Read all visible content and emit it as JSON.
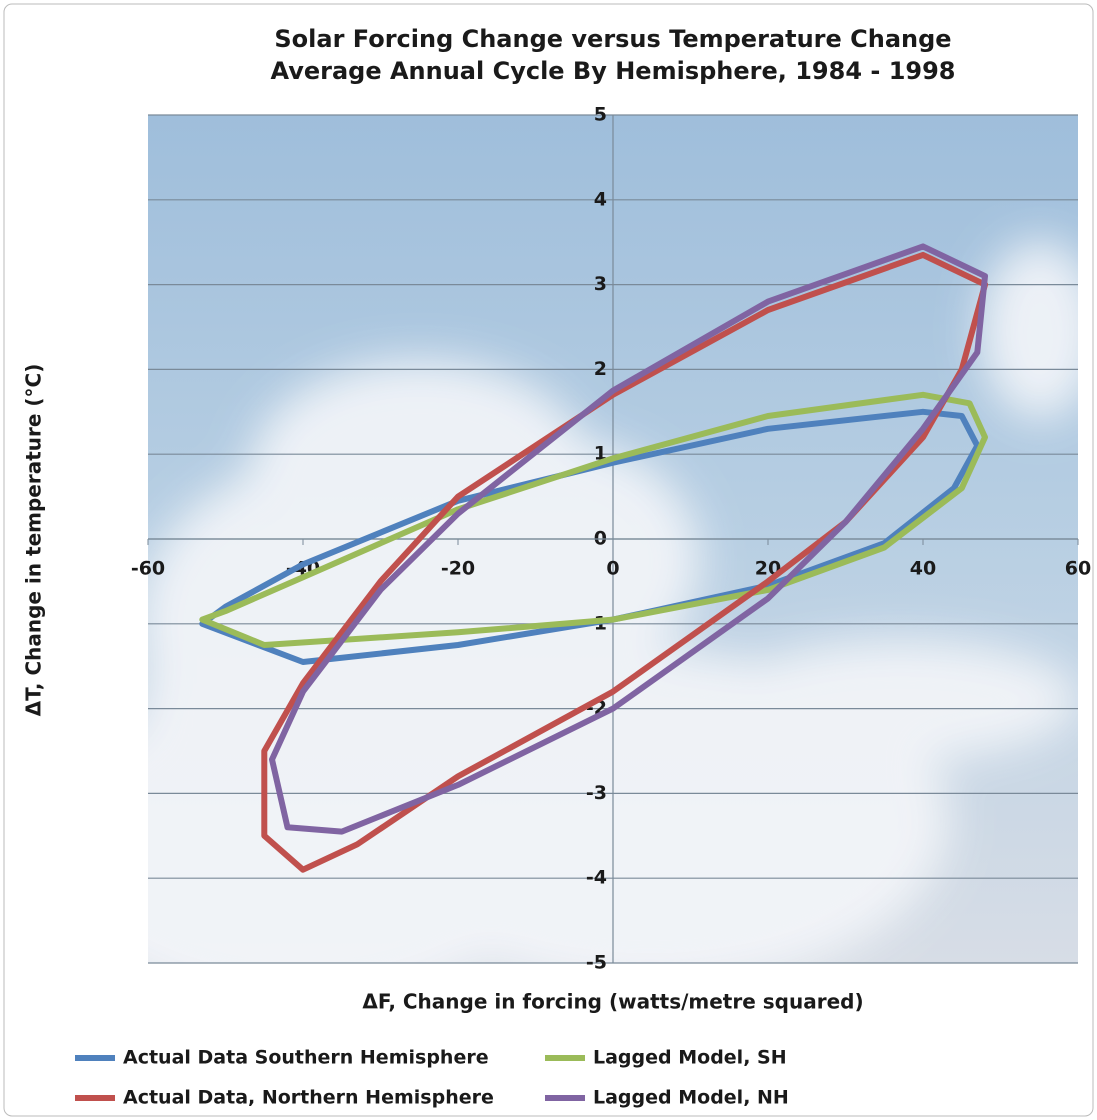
{
  "chart_data": {
    "type": "line",
    "title": "Solar Forcing Change versus Temperature Change",
    "subtitle": "Average Annual Cycle By Hemisphere, 1984 - 1998",
    "x_label": "ΔF, Change in forcing (watts/metre squared)",
    "y_label": "ΔT, Change in temperature (°C)",
    "xlim": [
      -60,
      60
    ],
    "ylim": [
      -5,
      5
    ],
    "xticks": [
      -60,
      -40,
      -20,
      0,
      20,
      40,
      60
    ],
    "yticks": [
      -5,
      -4,
      -3,
      -2,
      -1,
      0,
      1,
      2,
      3,
      4,
      5
    ],
    "grid": true,
    "legend": "bottom",
    "series": [
      {
        "name": "Actual Data Southern Hemisphere",
        "color": "#4f81bd",
        "x": [
          -53,
          -40,
          -20,
          0,
          20,
          35,
          44,
          47,
          45,
          40,
          20,
          0,
          -20,
          -40,
          -50,
          -53
        ],
        "y": [
          -1.0,
          -1.45,
          -1.25,
          -0.95,
          -0.55,
          -0.05,
          0.6,
          1.1,
          1.45,
          1.5,
          1.3,
          0.9,
          0.45,
          -0.3,
          -0.8,
          -1.0
        ]
      },
      {
        "name": "Lagged Model, SH",
        "color": "#9bbb59",
        "x": [
          -53,
          -45,
          -20,
          0,
          20,
          35,
          45,
          48,
          46,
          40,
          20,
          0,
          -20,
          -40,
          -50,
          -53
        ],
        "y": [
          -0.95,
          -1.25,
          -1.1,
          -0.95,
          -0.6,
          -0.1,
          0.6,
          1.2,
          1.6,
          1.7,
          1.45,
          0.95,
          0.35,
          -0.45,
          -0.85,
          -0.95
        ]
      },
      {
        "name": "Actual Data, Northern Hemisphere",
        "color": "#c0504d",
        "x": [
          40,
          48,
          45,
          40,
          30,
          20,
          0,
          -20,
          -33,
          -40,
          -45,
          -45,
          -40,
          -30,
          -20,
          0,
          20,
          40
        ],
        "y": [
          3.35,
          3.0,
          2.0,
          1.2,
          0.2,
          -0.5,
          -1.8,
          -2.8,
          -3.6,
          -3.9,
          -3.5,
          -2.5,
          -1.7,
          -0.5,
          0.5,
          1.7,
          2.7,
          3.35
        ]
      },
      {
        "name": "Lagged Model, NH",
        "color": "#8064a2",
        "x": [
          40,
          48,
          47,
          40,
          30,
          20,
          0,
          -20,
          -35,
          -42,
          -44,
          -40,
          -30,
          -20,
          0,
          20,
          40
        ],
        "y": [
          3.45,
          3.1,
          2.2,
          1.3,
          0.2,
          -0.7,
          -2.0,
          -2.9,
          -3.45,
          -3.4,
          -2.6,
          -1.8,
          -0.6,
          0.3,
          1.75,
          2.8,
          3.45
        ]
      }
    ]
  }
}
